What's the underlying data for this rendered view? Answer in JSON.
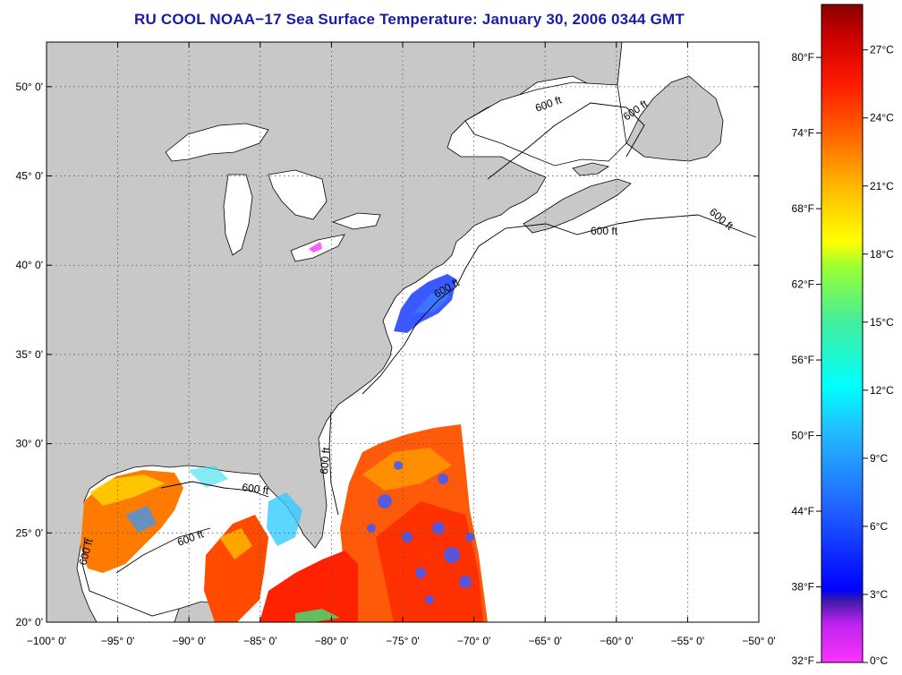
{
  "title": "RU COOL  NOAA−17  Sea Surface Temperature:  January 30, 2006 0344 GMT",
  "map": {
    "lon_range": [
      -100,
      -50
    ],
    "lat_range": [
      20,
      52.5
    ],
    "lon_ticks": [
      -100,
      -95,
      -90,
      -85,
      -80,
      -75,
      -70,
      -65,
      -60,
      -55,
      -50
    ],
    "lon_labels": [
      "−100° 0'",
      "−95° 0'",
      "−90° 0'",
      "−85° 0'",
      "−80° 0'",
      "−75° 0'",
      "−70° 0'",
      "−65° 0'",
      "−60° 0'",
      "−55° 0'",
      "−50° 0'"
    ],
    "lat_ticks": [
      20,
      25,
      30,
      35,
      40,
      45,
      50
    ],
    "lat_labels": [
      "20° 0'",
      "25° 0'",
      "30° 0'",
      "35° 0'",
      "40° 0'",
      "45° 0'",
      "50° 0'"
    ],
    "contour_label": "600 ft",
    "colors": {
      "land": "#c8c8c8",
      "ocean": "#ffffff",
      "grid": "#555555"
    }
  },
  "colorbar": {
    "f_labels": [
      "80°F",
      "74°F",
      "68°F",
      "62°F",
      "56°F",
      "50°F",
      "44°F",
      "38°F",
      "32°F"
    ],
    "f_values": [
      80,
      74,
      68,
      62,
      56,
      50,
      44,
      38,
      32
    ],
    "c_labels": [
      "27°C",
      "24°C",
      "21°C",
      "18°C",
      "15°C",
      "12°C",
      "9°C",
      "6°C",
      "3°C",
      "0°C"
    ],
    "c_values": [
      27,
      24,
      21,
      18,
      15,
      12,
      9,
      6,
      3,
      0
    ],
    "range_c": [
      0,
      29
    ]
  }
}
